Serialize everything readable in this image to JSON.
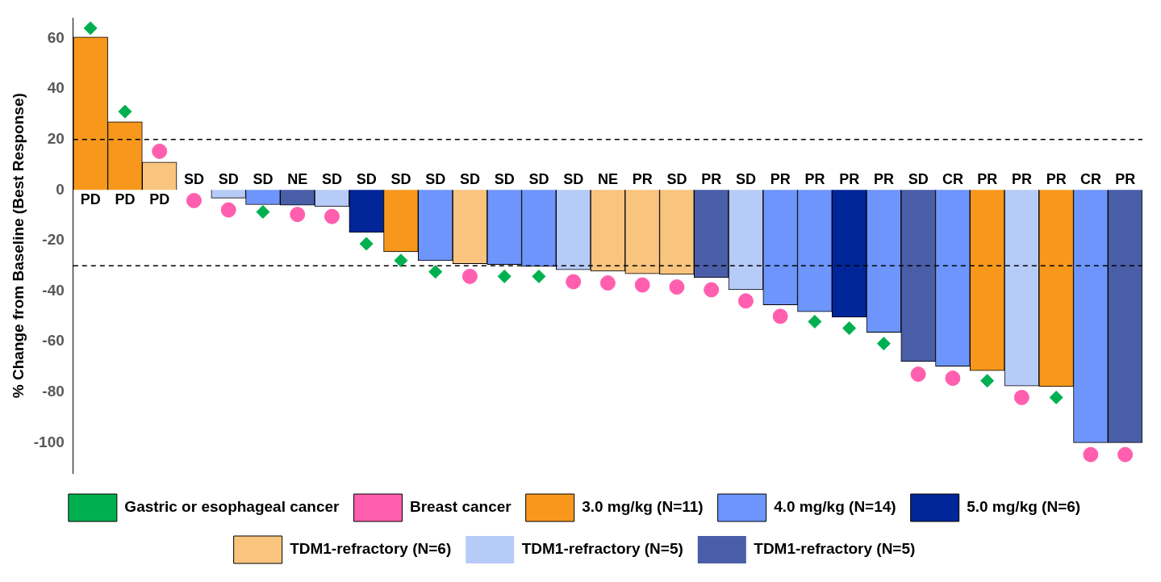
{
  "chart_data": {
    "type": "bar",
    "stacked": true,
    "ylabel": "% Change from Baseline (Best Response)",
    "categories": [
      "PD",
      "PD",
      "PD",
      "SD",
      "SD",
      "SD",
      "NE",
      "SD",
      "SD",
      "SD",
      "SD",
      "SD",
      "SD",
      "SD",
      "SD",
      "NE",
      "PR",
      "SD",
      "PR",
      "SD",
      "PR",
      "PR",
      "PR",
      "PR",
      "SD",
      "CR",
      "PR",
      "PR",
      "PR",
      "CR",
      "PR"
    ],
    "series": [
      {
        "name": "3.0 mg/kg (N=11)",
        "color": "#f7981d",
        "values": [
          60.5,
          27,
          null,
          null,
          null,
          null,
          null,
          null,
          null,
          -24.5,
          null,
          null,
          null,
          null,
          null,
          null,
          null,
          null,
          null,
          null,
          null,
          null,
          null,
          null,
          null,
          null,
          -71.5,
          null,
          -77.8,
          null,
          null
        ]
      },
      {
        "name": "4.0 mg/kg (N=14)",
        "color": "#6d95fb",
        "values": [
          null,
          null,
          null,
          0,
          null,
          -5.8,
          null,
          null,
          null,
          null,
          -28,
          null,
          -29.5,
          -30.3,
          null,
          null,
          null,
          null,
          null,
          null,
          -45.5,
          -48.2,
          null,
          -56.3,
          null,
          -69.7,
          null,
          null,
          null,
          -100,
          null
        ]
      },
      {
        "name": "5.0 mg/kg (N=6)",
        "color": "#002699",
        "values": [
          null,
          null,
          null,
          null,
          null,
          null,
          null,
          null,
          -16.8,
          null,
          null,
          null,
          null,
          null,
          null,
          null,
          null,
          null,
          null,
          null,
          null,
          null,
          -50.3,
          null,
          null,
          null,
          null,
          null,
          null,
          null,
          null
        ]
      },
      {
        "name": "TDM1-refractory (N=6)",
        "color": "#f8c47e",
        "values": [
          null,
          null,
          11,
          null,
          null,
          null,
          null,
          null,
          null,
          null,
          null,
          -29.2,
          null,
          null,
          null,
          -32.1,
          -33.2,
          -33.4,
          null,
          null,
          null,
          null,
          null,
          null,
          null,
          null,
          null,
          null,
          null,
          null,
          null
        ]
      },
      {
        "name": "TDM1-refractory (N=5)",
        "color": "#b7cbf8",
        "values": [
          null,
          null,
          null,
          null,
          -3.2,
          null,
          null,
          -6.6,
          null,
          null,
          null,
          null,
          null,
          null,
          -31.6,
          null,
          null,
          null,
          null,
          -39.5,
          null,
          null,
          null,
          null,
          null,
          null,
          null,
          -77.6,
          null,
          null,
          null
        ]
      },
      {
        "name": "TDM1-refractory (N=5)",
        "color": "#4a5ea8",
        "values": [
          null,
          null,
          null,
          null,
          null,
          null,
          -6,
          null,
          null,
          null,
          null,
          null,
          null,
          null,
          null,
          null,
          null,
          null,
          -34.7,
          null,
          null,
          null,
          null,
          null,
          -67.9,
          null,
          null,
          null,
          null,
          null,
          -100
        ]
      },
      {
        "name": "Gastric or esophageal cancer",
        "type": "scatter",
        "marker": "diamond",
        "color": "#00b050",
        "values": [
          64,
          31,
          null,
          null,
          null,
          -8.7,
          null,
          null,
          -21.3,
          -27.9,
          -32.4,
          null,
          -34.2,
          -34.2,
          null,
          null,
          null,
          null,
          null,
          null,
          null,
          -52.1,
          -54.7,
          -60.8,
          null,
          null,
          -75.5,
          null,
          -82.1,
          null,
          null
        ]
      },
      {
        "name": "Breast cancer",
        "type": "scatter",
        "marker": "circle",
        "color": "#ff5fae",
        "values": [
          null,
          null,
          15.3,
          -4.2,
          -7.9,
          null,
          -9.7,
          -10.5,
          null,
          null,
          null,
          -34.2,
          null,
          null,
          -36.3,
          -36.8,
          -37.6,
          -38.4,
          -39.5,
          -43.9,
          -50,
          null,
          null,
          null,
          -72.9,
          -74.5,
          null,
          -82.1,
          null,
          -104.7,
          -104.7
        ]
      }
    ],
    "ylim": [
      -112,
      68
    ],
    "yticks": [
      -100,
      -80,
      -60,
      -40,
      -20,
      0,
      20,
      40,
      60
    ],
    "ref_lines": [
      {
        "axis": "y",
        "value": 20,
        "line_style": "dashed"
      },
      {
        "axis": "y",
        "value": -30,
        "line_style": "dashed"
      }
    ],
    "legend": "bottom"
  }
}
